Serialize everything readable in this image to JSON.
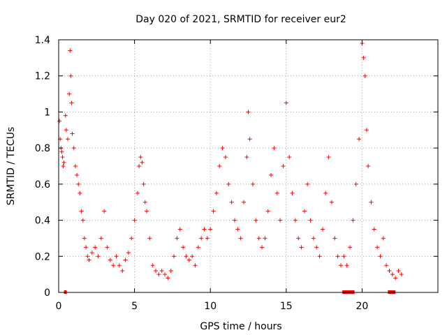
{
  "chart_data": {
    "type": "scatter",
    "title": "Day 020 of 2021, SRMTID for receiver eur2",
    "xlabel": "GPS time / hours",
    "ylabel": "SRMTID / TECUs",
    "xlim": [
      0,
      25
    ],
    "ylim": [
      0,
      1.4
    ],
    "xticks": [
      0,
      5,
      10,
      15,
      20
    ],
    "xtick_labels": [
      "0",
      "5",
      "10",
      "15",
      "20"
    ],
    "yticks": [
      0,
      0.2,
      0.4,
      0.6,
      0.8,
      1,
      1.2,
      1.4
    ],
    "ytick_labels": [
      "0",
      "0.2",
      "0.4",
      "0.6",
      "0.8",
      "1",
      "1.2",
      "1.4"
    ],
    "grid": true,
    "marker": "+",
    "color": "#ff0000",
    "series": [
      {
        "name": "SRMTID",
        "x": [
          0.05,
          0.1,
          0.15,
          0.2,
          0.25,
          0.3,
          0.35,
          0.45,
          0.5,
          0.6,
          0.7,
          0.75,
          0.8,
          0.85,
          0.9,
          1.0,
          1.1,
          1.2,
          1.3,
          1.4,
          1.5,
          1.6,
          1.7,
          1.8,
          1.9,
          2.0,
          2.2,
          2.4,
          2.6,
          2.8,
          3.0,
          3.2,
          3.4,
          3.6,
          3.8,
          4.0,
          4.2,
          4.4,
          4.6,
          4.8,
          5.0,
          5.2,
          5.3,
          5.4,
          5.5,
          5.6,
          5.7,
          5.8,
          6.0,
          6.2,
          6.4,
          6.6,
          6.8,
          7.0,
          7.2,
          7.4,
          7.6,
          7.8,
          8.0,
          8.2,
          8.4,
          8.6,
          8.8,
          9.0,
          9.2,
          9.4,
          9.6,
          9.8,
          10.0,
          10.2,
          10.4,
          10.6,
          10.8,
          11.0,
          11.2,
          11.4,
          11.6,
          11.8,
          12.0,
          12.2,
          12.4,
          12.5,
          12.6,
          12.8,
          13.0,
          13.2,
          13.4,
          13.6,
          13.8,
          14.0,
          14.2,
          14.4,
          14.6,
          14.8,
          15.0,
          15.2,
          15.4,
          15.6,
          15.8,
          16.0,
          16.2,
          16.4,
          16.6,
          16.8,
          17.0,
          17.2,
          17.4,
          17.6,
          17.8,
          18.0,
          18.2,
          18.4,
          18.6,
          18.8,
          19.0,
          19.2,
          19.4,
          19.6,
          19.8,
          20.0,
          20.1,
          20.2,
          20.3,
          20.4,
          20.6,
          20.8,
          21.0,
          21.2,
          21.4,
          21.6,
          21.8,
          22.0,
          22.2,
          22.4,
          22.6
        ],
        "y": [
          0.95,
          0.85,
          0.8,
          0.78,
          0.75,
          0.7,
          0.72,
          0.98,
          0.9,
          0.85,
          1.1,
          1.34,
          1.2,
          1.05,
          0.88,
          0.8,
          0.7,
          0.65,
          0.6,
          0.55,
          0.45,
          0.4,
          0.3,
          0.25,
          0.2,
          0.18,
          0.22,
          0.25,
          0.2,
          0.3,
          0.45,
          0.25,
          0.18,
          0.15,
          0.2,
          0.15,
          0.12,
          0.18,
          0.22,
          0.3,
          0.4,
          0.55,
          0.7,
          0.75,
          0.72,
          0.6,
          0.5,
          0.45,
          0.3,
          0.15,
          0.12,
          0.1,
          0.12,
          0.1,
          0.08,
          0.12,
          0.2,
          0.3,
          0.35,
          0.25,
          0.2,
          0.18,
          0.2,
          0.15,
          0.25,
          0.3,
          0.35,
          0.3,
          0.35,
          0.45,
          0.55,
          0.7,
          0.8,
          0.75,
          0.6,
          0.5,
          0.4,
          0.35,
          0.3,
          0.5,
          0.75,
          1.0,
          0.85,
          0.6,
          0.4,
          0.3,
          0.25,
          0.3,
          0.45,
          0.65,
          0.8,
          0.55,
          0.4,
          0.7,
          1.05,
          0.75,
          0.55,
          0.4,
          0.3,
          0.25,
          0.45,
          0.6,
          0.4,
          0.3,
          0.25,
          0.2,
          0.35,
          0.55,
          0.75,
          0.5,
          0.3,
          0.2,
          0.15,
          0.2,
          0.15,
          0.25,
          0.4,
          0.6,
          0.85,
          1.38,
          1.3,
          1.2,
          0.9,
          0.7,
          0.5,
          0.35,
          0.25,
          0.2,
          0.3,
          0.15,
          0.12,
          0.1,
          0.08,
          0.12,
          0.1
        ]
      }
    ],
    "flag_markers": [
      {
        "x_start": 0.35,
        "x_end": 0.5,
        "y": 0
      },
      {
        "x_start": 18.7,
        "x_end": 19.5,
        "y": 0
      },
      {
        "x_start": 21.7,
        "x_end": 22.2,
        "y": 0
      }
    ]
  }
}
